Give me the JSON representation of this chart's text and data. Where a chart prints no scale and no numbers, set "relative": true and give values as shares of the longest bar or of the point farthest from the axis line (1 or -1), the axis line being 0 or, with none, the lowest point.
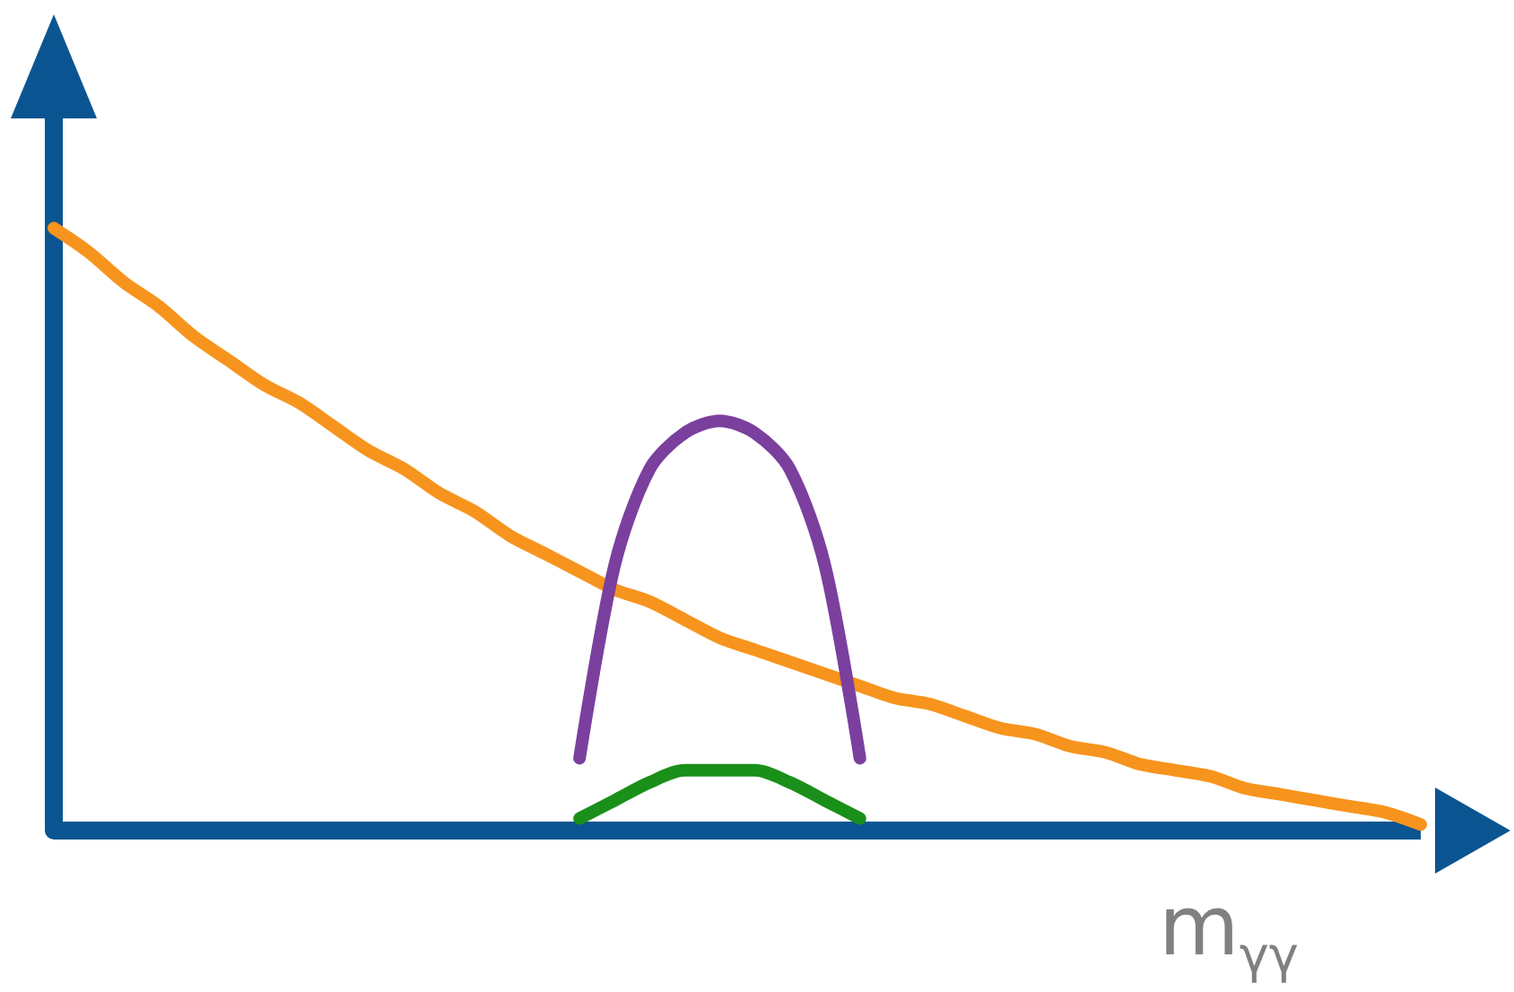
{
  "chart_data": {
    "type": "line",
    "xlabel": "m$_{γγ}$",
    "relative": true,
    "marker": "none",
    "grid": false,
    "line_style": "solid",
    "categories": [
      null,
      null,
      null,
      null,
      null,
      null,
      null,
      null,
      null,
      null,
      null,
      null,
      null,
      null,
      null,
      null,
      null,
      null,
      null,
      null,
      null,
      null,
      null,
      null,
      null,
      null,
      null,
      null,
      null,
      null,
      null,
      null,
      null,
      null,
      null,
      null,
      null,
      null,
      null,
      null
    ],
    "series": [
      {
        "color": "#f7941d",
        "values": [
          1,
          0.96,
          0.91,
          0.87,
          0.82,
          0.78,
          0.74,
          0.71,
          0.67,
          0.63,
          0.6,
          0.56,
          0.53,
          0.49,
          0.46,
          0.43,
          0.4,
          0.38,
          0.35,
          0.32,
          0.3,
          0.28,
          0.26,
          0.24,
          0.22,
          0.21,
          0.19,
          0.17,
          0.16,
          0.14,
          0.13,
          0.11,
          0.1,
          0.09,
          0.07,
          0.06,
          0.05,
          0.04,
          0.03,
          0.01
        ]
      },
      {
        "color": "#7b3f9e",
        "values": [
          null,
          null,
          null,
          null,
          null,
          null,
          null,
          null,
          null,
          null,
          null,
          null,
          null,
          null,
          null,
          0.12,
          0.44,
          0.6,
          0.66,
          0.68,
          0.66,
          0.6,
          0.44,
          0.12,
          null,
          null,
          null,
          null,
          null,
          null,
          null,
          null,
          null,
          null,
          null,
          null,
          null,
          null,
          null,
          null
        ]
      },
      {
        "color": "#1a8f1a",
        "values": [
          null,
          null,
          null,
          null,
          null,
          null,
          null,
          null,
          null,
          null,
          null,
          null,
          null,
          null,
          null,
          0.02,
          0.05,
          0.08,
          0.1,
          0.1,
          0.1,
          0.08,
          0.05,
          0.02,
          null,
          null,
          null,
          null,
          null,
          null,
          null,
          null,
          null,
          null,
          null,
          null,
          null,
          null,
          null,
          null
        ]
      }
    ]
  }
}
